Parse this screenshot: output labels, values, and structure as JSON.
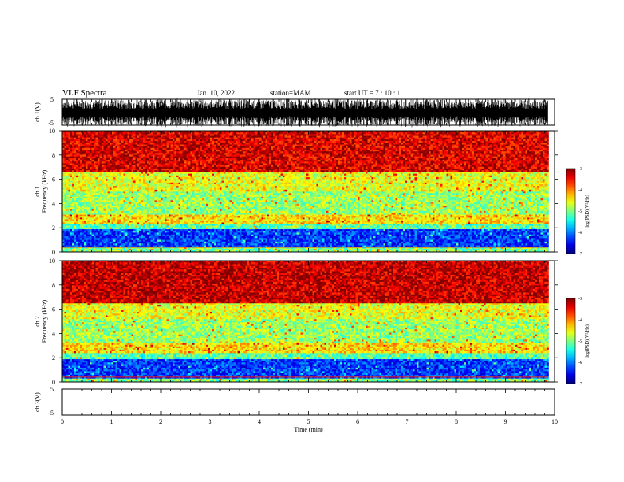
{
  "header": {
    "title": "VLF Spectra",
    "date": "Jan. 10, 2022",
    "station": "station=MAM",
    "start": "start UT =  7 : 10 : 1"
  },
  "chart_data": [
    {
      "type": "line",
      "panel": "ch.1 waveform",
      "ylabel": "ch.1(V)",
      "ylim": [
        -5,
        5
      ],
      "yticks": [
        "5",
        "-5"
      ],
      "xlim": [
        0,
        10
      ],
      "color": "#000000"
    },
    {
      "type": "heatmap",
      "panel": "ch.1 spectrogram",
      "ylabel": [
        "ch.1",
        "Frequency (kHz)"
      ],
      "ylim": [
        0,
        10
      ],
      "yticks": [
        "0",
        "2",
        "4",
        "6",
        "8",
        "10"
      ],
      "xlim": [
        0,
        9.85
      ],
      "colorbar": {
        "label": "log(PSD)(V²/Hz)",
        "range": [
          -7,
          -3
        ],
        "ticks": [
          "-3",
          "-4",
          "-5",
          "-6",
          "-7"
        ]
      },
      "bands": [
        {
          "fmin": 0.0,
          "fmax": 0.4,
          "level": -5.0
        },
        {
          "fmin": 0.4,
          "fmax": 1.9,
          "level": -6.3
        },
        {
          "fmin": 1.9,
          "fmax": 2.3,
          "level": -5.2
        },
        {
          "fmin": 2.3,
          "fmax": 3.1,
          "level": -4.4
        },
        {
          "fmin": 3.1,
          "fmax": 5.0,
          "level": -4.9
        },
        {
          "fmin": 5.0,
          "fmax": 6.6,
          "level": -4.6
        },
        {
          "fmin": 6.6,
          "fmax": 10.0,
          "level": -3.4
        }
      ]
    },
    {
      "type": "heatmap",
      "panel": "ch.2 spectrogram",
      "ylabel": [
        "ch.2",
        "Frequency (kHz)"
      ],
      "ylim": [
        0,
        10
      ],
      "yticks": [
        "0",
        "2",
        "4",
        "6",
        "8",
        "10"
      ],
      "xlim": [
        0,
        9.85
      ],
      "colorbar": {
        "label": "log(PSD)(V²/Hz)",
        "range": [
          -7,
          -3
        ],
        "ticks": [
          "-3",
          "-4",
          "-5",
          "-6",
          "-7"
        ]
      },
      "bands": [
        {
          "fmin": 0.0,
          "fmax": 0.3,
          "level": -5.0
        },
        {
          "fmin": 0.3,
          "fmax": 1.9,
          "level": -6.3
        },
        {
          "fmin": 1.9,
          "fmax": 2.4,
          "level": -5.2
        },
        {
          "fmin": 2.4,
          "fmax": 3.2,
          "level": -4.4
        },
        {
          "fmin": 3.2,
          "fmax": 5.2,
          "level": -4.9
        },
        {
          "fmin": 5.2,
          "fmax": 6.5,
          "level": -4.6
        },
        {
          "fmin": 6.5,
          "fmax": 10.0,
          "level": -3.3
        }
      ]
    },
    {
      "type": "line",
      "panel": "ch.3 waveform",
      "ylabel": "ch.3(V)",
      "ylim": [
        -5,
        5
      ],
      "yticks": [
        "5",
        "-5"
      ],
      "xlim": [
        0,
        10
      ],
      "flat_value": -1.5,
      "xlabel": "Time (min)",
      "xticks": [
        "0",
        "1",
        "2",
        "3",
        "4",
        "5",
        "6",
        "7",
        "8",
        "9",
        "10"
      ]
    }
  ]
}
